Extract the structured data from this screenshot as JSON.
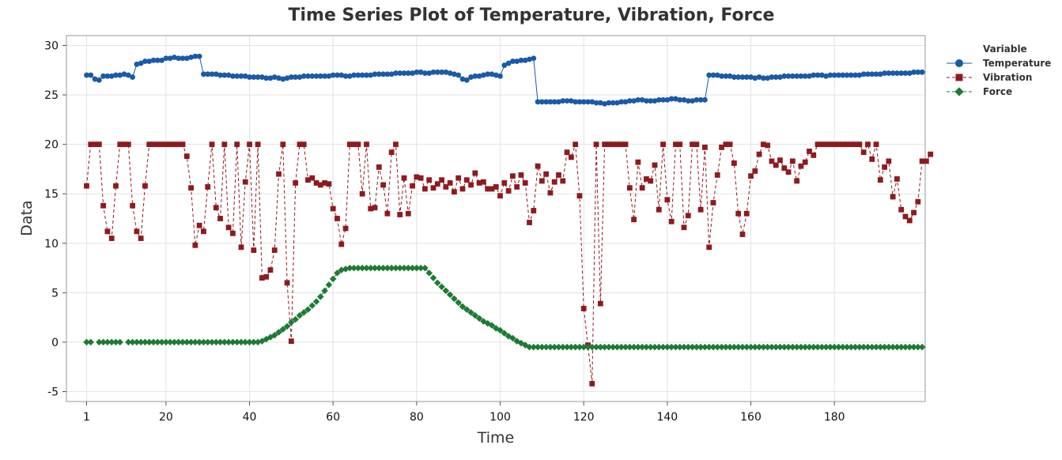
{
  "chart_data": {
    "type": "line",
    "title": "Time Series Plot of Temperature, Vibration, Force",
    "xlabel": "Time",
    "ylabel": "Data",
    "xlim": [
      1,
      197
    ],
    "ylim": [
      -6,
      31
    ],
    "x_ticks": [
      1,
      20,
      40,
      60,
      80,
      100,
      120,
      140,
      160,
      180
    ],
    "y_ticks": [
      -5,
      0,
      5,
      10,
      15,
      20,
      25,
      30
    ],
    "grid": true,
    "legend": {
      "title": "Variable",
      "position": "right"
    },
    "series": [
      {
        "name": "Temperature",
        "color": "#1a5aa6",
        "marker": "circle",
        "line": "solid",
        "values": [
          27.0,
          27.0,
          26.6,
          26.5,
          26.9,
          26.9,
          26.9,
          27.0,
          27.0,
          27.1,
          27.0,
          26.8,
          28.1,
          28.2,
          28.4,
          28.4,
          28.5,
          28.5,
          28.5,
          28.7,
          28.7,
          28.8,
          28.7,
          28.7,
          28.7,
          28.8,
          28.9,
          28.9,
          27.1,
          27.1,
          27.1,
          27.1,
          27.0,
          27.0,
          27.0,
          26.9,
          26.9,
          26.9,
          26.9,
          26.8,
          26.8,
          26.8,
          26.8,
          26.7,
          26.7,
          26.8,
          26.7,
          26.6,
          26.7,
          26.8,
          26.8,
          26.8,
          26.9,
          26.9,
          26.9,
          26.9,
          26.9,
          26.9,
          26.9,
          27.0,
          27.0,
          27.0,
          26.9,
          26.9,
          27.0,
          27.0,
          27.0,
          27.0,
          27.0,
          27.1,
          27.1,
          27.1,
          27.1,
          27.1,
          27.2,
          27.2,
          27.2,
          27.2,
          27.2,
          27.3,
          27.3,
          27.2,
          27.2,
          27.3,
          27.3,
          27.3,
          27.3,
          27.2,
          27.1,
          27.0,
          26.6,
          26.5,
          26.8,
          26.9,
          26.9,
          27.0,
          27.1,
          27.1,
          27.0,
          26.9,
          28.0,
          28.2,
          28.4,
          28.4,
          28.5,
          28.5,
          28.6,
          28.7,
          24.3,
          24.3,
          24.3,
          24.3,
          24.3,
          24.3,
          24.4,
          24.4,
          24.4,
          24.3,
          24.3,
          24.3,
          24.3,
          24.3,
          24.2,
          24.2,
          24.1,
          24.2,
          24.2,
          24.2,
          24.3,
          24.3,
          24.4,
          24.4,
          24.5,
          24.5,
          24.4,
          24.4,
          24.4,
          24.5,
          24.5,
          24.5,
          24.6,
          24.6,
          24.5,
          24.5,
          24.4,
          24.4,
          24.5,
          24.5,
          24.5,
          27.0,
          27.0,
          27.0,
          26.9,
          26.9,
          26.9,
          26.8,
          26.8,
          26.8,
          26.8,
          26.8,
          26.7,
          26.8,
          26.7,
          26.7,
          26.8,
          26.8,
          26.8,
          26.9,
          26.9,
          26.9,
          26.9,
          26.9,
          26.9,
          26.9,
          27.0,
          27.0,
          27.0,
          26.9,
          27.0,
          27.0,
          27.0,
          27.0,
          27.0,
          27.0,
          27.0,
          27.0,
          27.1,
          27.1,
          27.1,
          27.1,
          27.1,
          27.2,
          27.2,
          27.2,
          27.2,
          27.2,
          27.2,
          27.2,
          27.3,
          27.3,
          27.3
        ]
      },
      {
        "name": "Vibration",
        "color": "#8e1a1f",
        "marker": "square",
        "line": "dashed",
        "values": [
          15.8,
          20.0,
          20.0,
          20.0,
          13.8,
          11.2,
          10.5,
          15.8,
          20.0,
          20.0,
          20.0,
          13.8,
          11.2,
          10.5,
          15.8,
          20.0,
          20.0,
          20.0,
          20.0,
          20.0,
          20.0,
          20.0,
          20.0,
          20.0,
          18.8,
          15.6,
          9.8,
          11.8,
          11.2,
          15.7,
          20.0,
          13.6,
          12.5,
          20.0,
          11.6,
          11.0,
          20.0,
          9.6,
          16.2,
          20.0,
          9.3,
          20.0,
          6.5,
          6.6,
          7.3,
          9.3,
          17.0,
          20.0,
          6.0,
          0.1,
          16.1,
          20.0,
          20.0,
          16.4,
          16.6,
          16.1,
          15.9,
          16.1,
          16.0,
          13.5,
          12.5,
          9.9,
          11.5,
          20.0,
          20.0,
          20.0,
          15.0,
          20.0,
          13.5,
          13.6,
          17.7,
          15.9,
          13.0,
          19.2,
          20.0,
          12.9,
          16.6,
          13.0,
          15.8,
          16.7,
          16.6,
          15.5,
          16.4,
          15.6,
          16.0,
          16.4,
          15.7,
          16.1,
          15.2,
          16.6,
          15.5,
          16.4,
          15.9,
          17.1,
          16.1,
          16.2,
          15.5,
          15.5,
          15.7,
          14.8,
          16.1,
          15.3,
          16.8,
          15.7,
          16.9,
          16.1,
          12.1,
          13.3,
          17.8,
          16.3,
          17.0,
          15.1,
          16.2,
          16.9,
          16.3,
          19.2,
          18.7,
          20.0,
          14.8,
          3.4,
          -0.3,
          -4.2,
          20.0,
          3.9,
          20.0,
          20.0,
          20.0,
          20.0,
          20.0,
          20.0,
          15.6,
          12.4,
          18.2,
          15.6,
          16.5,
          16.3,
          17.9,
          13.4,
          20.0,
          14.4,
          12.2,
          20.0,
          20.0,
          11.6,
          12.8,
          20.0,
          20.0,
          13.4,
          19.7,
          9.6,
          14.1,
          16.9,
          19.7,
          20.0,
          20.0,
          18.1,
          13.0,
          10.9,
          13.0,
          16.8,
          17.3,
          19.0,
          20.0,
          19.9,
          18.3,
          17.9,
          18.4,
          17.6,
          17.2,
          18.3,
          16.3,
          17.8,
          18.2,
          19.3,
          18.9,
          20.0,
          20.0,
          20.0,
          20.0,
          20.0,
          20.0,
          20.0,
          20.0,
          20.0,
          20.0,
          20.0,
          19.2,
          20.0,
          18.5,
          20.0,
          16.4,
          17.7,
          18.3,
          14.7,
          16.5,
          13.4,
          12.7,
          12.3,
          13.1,
          14.2,
          18.3,
          18.3,
          19.0
        ]
      },
      {
        "name": "Force",
        "color": "#1e7a34",
        "marker": "diamond",
        "line": "dashed",
        "values": [
          0.0,
          0.0,
          null,
          0.0,
          0.0,
          0.0,
          0.0,
          0.0,
          0.0,
          null,
          0.0,
          0.0,
          0.0,
          0.0,
          0.0,
          0.0,
          0.0,
          0.0,
          0.0,
          0.0,
          0.0,
          0.0,
          0.0,
          0.0,
          0.0,
          0.0,
          0.0,
          0.0,
          0.0,
          0.0,
          0.0,
          0.0,
          0.0,
          0.0,
          0.0,
          0.0,
          0.0,
          0.0,
          0.0,
          0.0,
          0.0,
          0.0,
          0.1,
          0.3,
          0.5,
          0.7,
          1.0,
          1.3,
          1.6,
          2.0,
          2.3,
          2.7,
          3.0,
          3.3,
          3.7,
          4.1,
          4.6,
          5.2,
          5.8,
          6.4,
          7.0,
          7.3,
          7.4,
          7.5,
          7.5,
          7.5,
          7.5,
          7.5,
          7.5,
          7.5,
          7.5,
          7.5,
          7.5,
          7.5,
          7.5,
          7.5,
          7.5,
          7.5,
          7.5,
          7.5,
          7.5,
          7.5,
          7.0,
          6.5,
          6.0,
          5.6,
          5.2,
          4.8,
          4.4,
          4.0,
          3.6,
          3.3,
          3.0,
          2.7,
          2.4,
          2.1,
          1.9,
          1.7,
          1.4,
          1.2,
          0.9,
          0.6,
          0.4,
          0.1,
          -0.1,
          -0.3,
          -0.5,
          -0.5,
          -0.5,
          -0.5,
          -0.5,
          -0.5,
          -0.5,
          -0.5,
          -0.5,
          -0.5,
          -0.5,
          -0.5,
          -0.5,
          -0.5,
          -0.5,
          -0.5,
          -0.5,
          -0.5,
          -0.5,
          -0.5,
          -0.5,
          -0.5,
          -0.5,
          -0.5,
          -0.5,
          -0.5,
          -0.5,
          -0.5,
          -0.5,
          -0.5,
          -0.5,
          -0.5,
          -0.5,
          -0.5,
          -0.5,
          -0.5,
          -0.5,
          -0.5,
          -0.5,
          -0.5,
          -0.5,
          -0.5,
          -0.5,
          -0.5,
          -0.5,
          -0.5,
          -0.5,
          -0.5,
          -0.5,
          -0.5,
          -0.5,
          -0.5,
          -0.5,
          -0.5,
          -0.5,
          -0.5,
          -0.5,
          -0.5,
          -0.5,
          -0.5,
          -0.5,
          -0.5,
          -0.5,
          -0.5,
          -0.5,
          -0.5,
          -0.5,
          -0.5,
          -0.5,
          -0.5,
          -0.5,
          -0.5,
          -0.5,
          -0.5,
          -0.5,
          -0.5,
          -0.5,
          -0.5,
          -0.5,
          -0.5,
          -0.5,
          -0.5,
          -0.5,
          -0.5,
          -0.5,
          -0.5,
          -0.5,
          -0.5,
          -0.5,
          -0.5,
          -0.5,
          -0.5,
          -0.5,
          -0.5,
          -0.5
        ]
      }
    ]
  }
}
